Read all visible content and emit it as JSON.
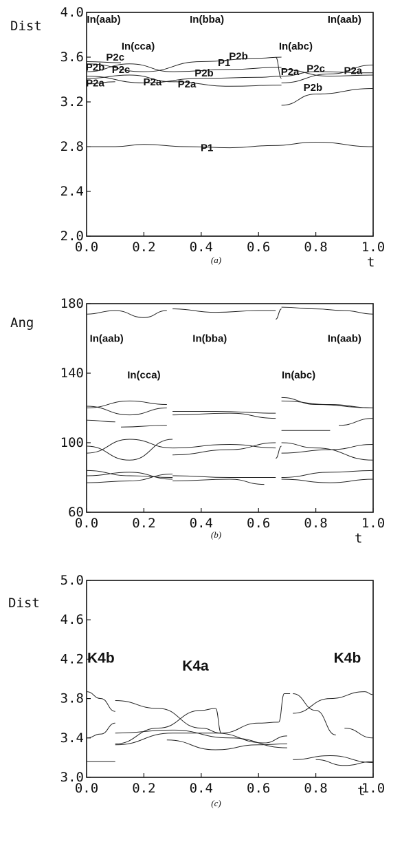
{
  "chart_data": [
    {
      "type": "line",
      "caption": "(a)",
      "ylabel": "Dist",
      "xlabel": "t",
      "xlim": [
        0.0,
        1.0
      ],
      "ylim": [
        2.0,
        4.0
      ],
      "xticks": [
        "0.0",
        "0.2",
        "0.4",
        "0.6",
        "0.8",
        "1.0"
      ],
      "yticks": [
        "2.0",
        "2.4",
        "2.8",
        "3.2",
        "3.6",
        "4.0"
      ],
      "annotations": [
        {
          "text": "In(aab)",
          "x": 0.06,
          "y": 3.94,
          "style": "big"
        },
        {
          "text": "In(bba)",
          "x": 0.42,
          "y": 3.94,
          "style": "big"
        },
        {
          "text": "In(aab)",
          "x": 0.9,
          "y": 3.94,
          "style": "big"
        },
        {
          "text": "In(cca)",
          "x": 0.18,
          "y": 3.7,
          "style": "big"
        },
        {
          "text": "In(abc)",
          "x": 0.73,
          "y": 3.7,
          "style": "big"
        },
        {
          "text": "P2c",
          "x": 0.1,
          "y": 3.6
        },
        {
          "text": "P2b",
          "x": 0.53,
          "y": 3.61
        },
        {
          "text": "P1",
          "x": 0.48,
          "y": 3.55
        },
        {
          "text": "P2b",
          "x": 0.03,
          "y": 3.51
        },
        {
          "text": "P2c",
          "x": 0.12,
          "y": 3.49
        },
        {
          "text": "P2b",
          "x": 0.41,
          "y": 3.46
        },
        {
          "text": "P2a",
          "x": 0.03,
          "y": 3.37
        },
        {
          "text": "P2a",
          "x": 0.23,
          "y": 3.38
        },
        {
          "text": "P2a",
          "x": 0.35,
          "y": 3.36
        },
        {
          "text": "P2a",
          "x": 0.71,
          "y": 3.47
        },
        {
          "text": "P2c",
          "x": 0.8,
          "y": 3.5
        },
        {
          "text": "P2a",
          "x": 0.93,
          "y": 3.48
        },
        {
          "text": "P2b",
          "x": 0.79,
          "y": 3.33
        },
        {
          "text": "P1",
          "x": 0.42,
          "y": 2.79
        }
      ],
      "series": [
        {
          "x": [
            0.0,
            0.2,
            0.4,
            0.6,
            0.68
          ],
          "values": [
            3.54,
            3.47,
            3.56,
            3.59,
            3.6
          ]
        },
        {
          "x": [
            0.0,
            0.15,
            0.3,
            0.5,
            0.68
          ],
          "values": [
            3.47,
            3.54,
            3.47,
            3.49,
            3.51
          ]
        },
        {
          "x": [
            0.0,
            0.2,
            0.4,
            0.6,
            0.68
          ],
          "values": [
            3.43,
            3.37,
            3.41,
            3.42,
            3.43
          ]
        },
        {
          "x": [
            0.0,
            0.15,
            0.3,
            0.5,
            0.68
          ],
          "values": [
            3.41,
            3.44,
            3.38,
            3.34,
            3.35
          ]
        },
        {
          "x": [
            0.0,
            0.12
          ],
          "values": [
            3.56,
            3.55
          ]
        },
        {
          "x": [
            0.0,
            0.1
          ],
          "values": [
            3.36,
            3.38
          ]
        },
        {
          "x": [
            0.68,
            0.85,
            1.0
          ],
          "values": [
            3.49,
            3.43,
            3.44
          ]
        },
        {
          "x": [
            0.68,
            0.8,
            1.0
          ],
          "values": [
            3.43,
            3.47,
            3.46
          ]
        },
        {
          "x": [
            0.68,
            0.85,
            1.0
          ],
          "values": [
            3.37,
            3.45,
            3.53
          ]
        },
        {
          "x": [
            0.68,
            0.8,
            1.0
          ],
          "values": [
            3.17,
            3.27,
            3.32
          ]
        },
        {
          "x": [
            0.66,
            0.68
          ],
          "values": [
            3.6,
            3.41
          ]
        },
        {
          "x": [
            0.0,
            0.1,
            0.2,
            0.35,
            0.5,
            0.65,
            0.8,
            1.0
          ],
          "values": [
            2.8,
            2.8,
            2.82,
            2.8,
            2.79,
            2.81,
            2.84,
            2.8
          ]
        }
      ]
    },
    {
      "type": "line",
      "caption": "(b)",
      "ylabel": "Ang",
      "xlabel": "t",
      "xlim": [
        0.0,
        1.0
      ],
      "ylim": [
        60,
        180
      ],
      "xticks": [
        "0.0",
        "0.2",
        "0.4",
        "0.6",
        "0.8",
        "1.0"
      ],
      "yticks": [
        "60",
        "100",
        "140",
        "180"
      ],
      "annotations": [
        {
          "text": "In(aab)",
          "x": 0.07,
          "y": 160,
          "style": "big"
        },
        {
          "text": "In(bba)",
          "x": 0.43,
          "y": 160,
          "style": "big"
        },
        {
          "text": "In(aab)",
          "x": 0.9,
          "y": 160,
          "style": "big"
        },
        {
          "text": "In(cca)",
          "x": 0.2,
          "y": 139,
          "style": "big"
        },
        {
          "text": "In(abc)",
          "x": 0.74,
          "y": 139,
          "style": "big"
        }
      ],
      "series": [
        {
          "x": [
            0.0,
            0.1,
            0.2,
            0.28
          ],
          "values": [
            174,
            176,
            172,
            176
          ]
        },
        {
          "x": [
            0.3,
            0.45,
            0.6,
            0.66
          ],
          "values": [
            177,
            175,
            176,
            176
          ]
        },
        {
          "x": [
            0.68,
            0.8,
            0.9,
            1.0
          ],
          "values": [
            178,
            177,
            176,
            174
          ]
        },
        {
          "x": [
            0.66,
            0.68
          ],
          "values": [
            171,
            177
          ]
        },
        {
          "x": [
            0.0,
            0.15,
            0.28
          ],
          "values": [
            120,
            124,
            122
          ]
        },
        {
          "x": [
            0.0,
            0.15,
            0.28
          ],
          "values": [
            121,
            116,
            120
          ]
        },
        {
          "x": [
            0.0,
            0.1
          ],
          "values": [
            113,
            112
          ]
        },
        {
          "x": [
            0.12,
            0.28
          ],
          "values": [
            109,
            110
          ]
        },
        {
          "x": [
            0.3,
            0.45,
            0.66
          ],
          "values": [
            118,
            118,
            117
          ]
        },
        {
          "x": [
            0.3,
            0.5,
            0.66
          ],
          "values": [
            116,
            117,
            114
          ]
        },
        {
          "x": [
            0.68,
            0.8,
            1.0
          ],
          "values": [
            126,
            122,
            120
          ]
        },
        {
          "x": [
            0.68,
            0.85,
            1.0
          ],
          "values": [
            124,
            122,
            120
          ]
        },
        {
          "x": [
            0.68,
            0.85
          ],
          "values": [
            107,
            107
          ]
        },
        {
          "x": [
            0.88,
            1.0
          ],
          "values": [
            110,
            114
          ]
        },
        {
          "x": [
            0.0,
            0.15,
            0.3
          ],
          "values": [
            98,
            90,
            102
          ]
        },
        {
          "x": [
            0.0,
            0.15,
            0.3
          ],
          "values": [
            94,
            102,
            97
          ]
        },
        {
          "x": [
            0.3,
            0.5,
            0.66
          ],
          "values": [
            97,
            99,
            97
          ]
        },
        {
          "x": [
            0.3,
            0.5,
            0.66
          ],
          "values": [
            93,
            96,
            100
          ]
        },
        {
          "x": [
            0.66,
            0.68
          ],
          "values": [
            91,
            98
          ]
        },
        {
          "x": [
            0.68,
            0.8,
            1.0
          ],
          "values": [
            100,
            97,
            90
          ]
        },
        {
          "x": [
            0.68,
            0.85,
            1.0
          ],
          "values": [
            94,
            96,
            99
          ]
        },
        {
          "x": [
            0.0,
            0.15,
            0.3
          ],
          "values": [
            84,
            81,
            80
          ]
        },
        {
          "x": [
            0.0,
            0.15,
            0.3
          ],
          "values": [
            81,
            83,
            79
          ]
        },
        {
          "x": [
            0.0,
            0.15,
            0.3
          ],
          "values": [
            77,
            78,
            82
          ]
        },
        {
          "x": [
            0.3,
            0.5,
            0.66
          ],
          "values": [
            81,
            80,
            80
          ]
        },
        {
          "x": [
            0.3,
            0.5,
            0.62
          ],
          "values": [
            78,
            79,
            76
          ]
        },
        {
          "x": [
            0.68,
            0.85,
            1.0
          ],
          "values": [
            80,
            83,
            84
          ]
        },
        {
          "x": [
            0.68,
            0.85,
            1.0
          ],
          "values": [
            79,
            77,
            79
          ]
        }
      ]
    },
    {
      "type": "line",
      "caption": "(c)",
      "ylabel": "Dist",
      "xlabel": "t",
      "xlim": [
        0.0,
        1.0
      ],
      "ylim": [
        3.0,
        5.0
      ],
      "xticks": [
        "0.0",
        "0.2",
        "0.4",
        "0.6",
        "0.8",
        "1.0"
      ],
      "yticks": [
        "3.0",
        "3.4",
        "3.8",
        "4.2",
        "4.6",
        "5.0"
      ],
      "annotations": [
        {
          "text": "K4b",
          "x": 0.05,
          "y": 4.2,
          "style": "huge"
        },
        {
          "text": "K4a",
          "x": 0.38,
          "y": 4.12,
          "style": "huge"
        },
        {
          "text": "K4b",
          "x": 0.91,
          "y": 4.2,
          "style": "huge"
        }
      ],
      "series": [
        {
          "x": [
            0.0,
            0.05,
            0.1
          ],
          "values": [
            3.87,
            3.8,
            3.67
          ]
        },
        {
          "x": [
            0.0,
            0.05,
            0.1
          ],
          "values": [
            3.4,
            3.44,
            3.55
          ]
        },
        {
          "x": [
            0.0,
            0.1
          ],
          "values": [
            3.16,
            3.16
          ]
        },
        {
          "x": [
            0.1,
            0.25,
            0.4,
            0.47
          ],
          "values": [
            3.78,
            3.7,
            3.5,
            3.45
          ]
        },
        {
          "x": [
            0.1,
            0.25,
            0.4,
            0.45
          ],
          "values": [
            3.34,
            3.5,
            3.68,
            3.7
          ]
        },
        {
          "x": [
            0.45,
            0.47
          ],
          "values": [
            3.7,
            3.45
          ]
        },
        {
          "x": [
            0.47,
            0.6,
            0.67
          ],
          "values": [
            3.45,
            3.55,
            3.56
          ]
        },
        {
          "x": [
            0.1,
            0.3,
            0.5,
            0.7
          ],
          "values": [
            3.45,
            3.48,
            3.4,
            3.3
          ]
        },
        {
          "x": [
            0.1,
            0.3,
            0.45,
            0.62,
            0.7
          ],
          "values": [
            3.33,
            3.45,
            3.45,
            3.35,
            3.42
          ]
        },
        {
          "x": [
            0.28,
            0.45,
            0.6,
            0.7
          ],
          "values": [
            3.38,
            3.28,
            3.33,
            3.34
          ]
        },
        {
          "x": [
            0.67,
            0.69,
            0.71
          ],
          "values": [
            3.56,
            3.85,
            3.85
          ]
        },
        {
          "x": [
            0.72,
            0.85,
            0.97,
            1.0
          ],
          "values": [
            3.65,
            3.8,
            3.87,
            3.84
          ]
        },
        {
          "x": [
            0.72,
            0.8,
            0.87
          ],
          "values": [
            3.85,
            3.68,
            3.43
          ]
        },
        {
          "x": [
            0.9,
            1.0
          ],
          "values": [
            3.5,
            3.4
          ]
        },
        {
          "x": [
            0.72,
            0.85,
            1.0
          ],
          "values": [
            3.18,
            3.22,
            3.15
          ]
        },
        {
          "x": [
            0.8,
            0.9,
            1.0
          ],
          "values": [
            3.18,
            3.12,
            3.16
          ]
        }
      ]
    }
  ]
}
